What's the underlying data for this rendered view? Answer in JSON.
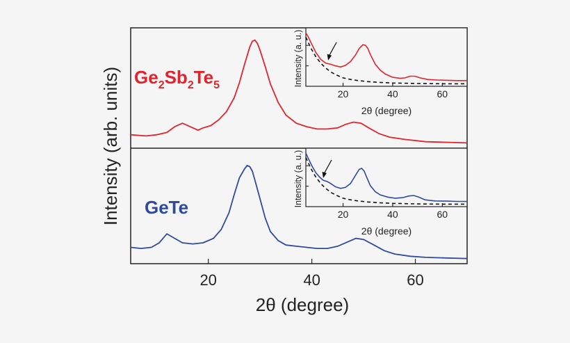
{
  "colors": {
    "background": "#f5f5f5",
    "gst": "#e3232c",
    "gete": "#2e4a9c",
    "axis": "#222222",
    "dashed": "#111111"
  },
  "chart_data": [
    {
      "type": "line",
      "title": "",
      "xlabel": "2θ (degree)",
      "ylabel": "Intensity (arb. units)",
      "xlim": [
        5,
        70
      ],
      "xticks": [
        20,
        40,
        60
      ],
      "xtick_labels": [
        "20",
        "40",
        "60"
      ],
      "grid": false,
      "panels": [
        {
          "name": "Ge2Sb2Te5",
          "label_parts": [
            [
              "Ge",
              ""
            ],
            [
              "2",
              "sub"
            ],
            [
              "Sb",
              ""
            ],
            [
              "2",
              "sub"
            ],
            [
              "Te",
              ""
            ],
            [
              "5",
              "sub"
            ]
          ],
          "color": "#e3232c",
          "ylim": [
            0,
            100
          ],
          "x": [
            5,
            8,
            10,
            12,
            13.5,
            15,
            16.5,
            18,
            19,
            20.5,
            22,
            23.5,
            25,
            26,
            27,
            28,
            28.5,
            29,
            29.5,
            30,
            31,
            32,
            33.5,
            35,
            37,
            39,
            41,
            43,
            45,
            46.5,
            48,
            49.5,
            51,
            53,
            55,
            58,
            62,
            66,
            70
          ],
          "y": [
            11,
            10,
            11,
            13,
            18,
            21,
            18,
            15,
            17,
            19,
            24,
            31,
            43,
            56,
            72,
            87,
            92,
            93,
            90,
            84,
            70,
            55,
            39,
            28,
            21,
            18,
            16,
            16,
            17,
            20,
            22,
            21,
            17,
            12,
            9,
            7,
            5,
            4.5,
            4
          ]
        },
        {
          "name": "GeTe",
          "label": "GeTe",
          "color": "#2e4a9c",
          "ylim": [
            0,
            100
          ],
          "x": [
            5,
            7,
            9,
            10.5,
            12,
            13.5,
            15,
            17,
            19,
            21,
            22.5,
            24,
            25,
            26,
            27,
            27.5,
            28,
            28.5,
            29,
            30,
            31,
            32,
            33.5,
            35,
            37,
            39,
            41,
            43,
            45,
            47,
            48.5,
            50,
            52,
            54,
            56,
            59,
            62,
            66,
            70
          ],
          "y": [
            14,
            13,
            14,
            18,
            26,
            22,
            18,
            17,
            18,
            22,
            30,
            45,
            61,
            76,
            84,
            87,
            86,
            82,
            74,
            57,
            40,
            28,
            20,
            16,
            15,
            14,
            13,
            13,
            15,
            19,
            22,
            21,
            16,
            11,
            8,
            6,
            5,
            4.5,
            4
          ]
        }
      ]
    },
    {
      "type": "line",
      "title": "",
      "panel": "Ge2Sb2Te5 inset",
      "xlabel": "2θ (degree)",
      "ylabel": "Intensity (a. u.)",
      "xlim": [
        5,
        70
      ],
      "ylim": [
        0,
        100
      ],
      "xticks": [
        20,
        40,
        60
      ],
      "xtick_labels": [
        "20",
        "40",
        "60"
      ],
      "series": [
        {
          "name": "measured",
          "style": "solid",
          "color": "#e3232c",
          "x": [
            5,
            6,
            7.5,
            9,
            11,
            13,
            15,
            17,
            19,
            21,
            23,
            25,
            26.5,
            28,
            29,
            30,
            31,
            33,
            35,
            37,
            40,
            43,
            45,
            47,
            49,
            51,
            54,
            58,
            62,
            66,
            70
          ],
          "y": [
            96,
            88,
            74,
            60,
            47,
            40,
            38,
            35,
            33,
            36,
            43,
            55,
            67,
            74,
            73,
            67,
            56,
            38,
            27,
            20,
            14,
            12,
            13,
            16,
            16,
            13,
            10,
            9,
            8.5,
            8,
            8
          ]
        },
        {
          "name": "background",
          "style": "dashed",
          "color": "#111111",
          "x": [
            5,
            7,
            9,
            11,
            13,
            15,
            17,
            20,
            23,
            26,
            30,
            35,
            40,
            50,
            60,
            70
          ],
          "y": [
            88,
            68,
            52,
            40,
            31,
            24,
            19,
            13,
            10,
            8,
            6,
            4.5,
            3.5,
            2.5,
            2,
            2
          ]
        }
      ],
      "annotations": [
        {
          "type": "arrow",
          "x": 14,
          "y": 40,
          "note": "shoulder"
        }
      ]
    },
    {
      "type": "line",
      "title": "",
      "panel": "GeTe inset",
      "xlabel": "2θ (degree)",
      "ylabel": "Intensity (a. u.)",
      "xlim": [
        5,
        70
      ],
      "ylim": [
        0,
        100
      ],
      "xticks": [
        20,
        40,
        60
      ],
      "xtick_labels": [
        "20",
        "40",
        "60"
      ],
      "series": [
        {
          "name": "measured",
          "style": "solid",
          "color": "#2e4a9c",
          "x": [
            5,
            6,
            7.5,
            9,
            10.5,
            12,
            13.5,
            15,
            17,
            19,
            21,
            23,
            25,
            26.5,
            27.5,
            28.5,
            29.5,
            31,
            33,
            35,
            38,
            41,
            44,
            46.5,
            48.5,
            50.5,
            53,
            57,
            62,
            66,
            70
          ],
          "y": [
            96,
            86,
            72,
            60,
            52,
            46,
            44,
            40,
            34,
            31,
            33,
            40,
            55,
            66,
            68,
            63,
            52,
            36,
            25,
            19,
            15,
            13,
            14,
            17,
            18,
            15,
            10,
            8,
            7.5,
            7,
            7
          ]
        },
        {
          "name": "background",
          "style": "dashed",
          "color": "#111111",
          "x": [
            5,
            7,
            9,
            11,
            13,
            15,
            17,
            20,
            23,
            26,
            30,
            35,
            40,
            50,
            60,
            70
          ],
          "y": [
            88,
            68,
            52,
            40,
            31,
            24,
            19,
            13,
            10,
            8,
            6,
            4.5,
            3.5,
            2.5,
            2,
            2
          ]
        }
      ],
      "annotations": [
        {
          "type": "arrow",
          "x": 12,
          "y": 45,
          "note": "shoulder"
        }
      ]
    }
  ]
}
